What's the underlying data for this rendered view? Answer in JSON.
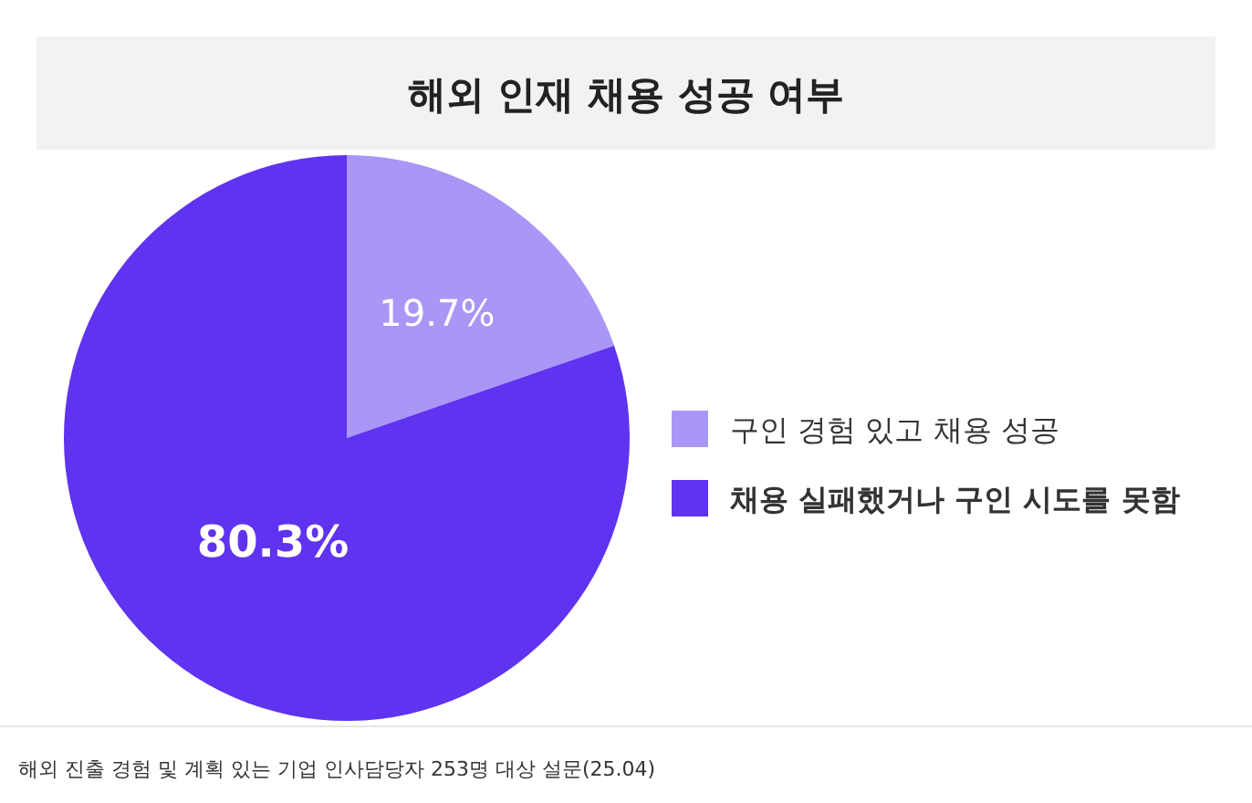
{
  "chart_data": {
    "type": "pie",
    "title": "해외 인재 채용 성공 여부",
    "categories": [
      "구인 경험 있고 채용 성공",
      "채용 실패했거나 구인 시도를 못함"
    ],
    "values": [
      19.7,
      80.3
    ],
    "colors": [
      "#a996f7",
      "#5f33ef"
    ],
    "value_labels": [
      "19.7%",
      "80.3%"
    ],
    "legend": "right",
    "annotations": [
      "해외 진출 경험 및 계획 있는 기업 인사담당자 253명 대상 설문(25.04)"
    ]
  }
}
